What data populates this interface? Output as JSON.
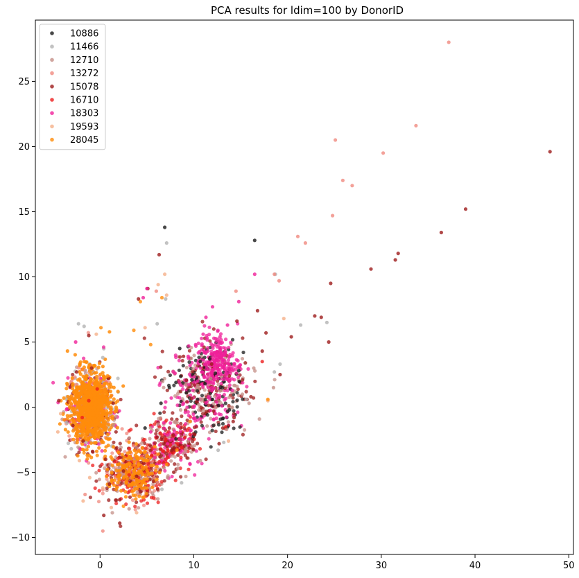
{
  "chart_data": {
    "type": "scatter",
    "title": "PCA results for ldim=100 by DonorID",
    "xlabel": "",
    "ylabel": "",
    "xlim": [
      -6.9,
      50.5
    ],
    "ylim": [
      -11.3,
      29.7
    ],
    "xticks": [
      0,
      10,
      20,
      30,
      40,
      50
    ],
    "yticks": [
      -10,
      -5,
      0,
      5,
      10,
      15,
      20,
      25
    ],
    "legend_position": "upper-left",
    "grid": false,
    "series": [
      {
        "name": "10886",
        "color": "#1a1a1a",
        "points": [
          [
            6.9,
            13.8
          ],
          [
            16.5,
            12.8
          ],
          [
            8.5,
            4.5
          ],
          [
            10.7,
            3.5
          ],
          [
            11.7,
            3.7
          ],
          [
            9.8,
            2.1
          ],
          [
            8.1,
            1.9
          ],
          [
            7.4,
            1.5
          ],
          [
            12.3,
            2.6
          ],
          [
            10.4,
            0.6
          ],
          [
            6.5,
            0.3
          ],
          [
            4.8,
            -1.6
          ],
          [
            14.8,
            2.8
          ],
          [
            11.2,
            1.8
          ],
          [
            9.2,
            1.1
          ]
        ]
      },
      {
        "name": "11466",
        "color": "#b3b3b3",
        "points": [
          [
            7.1,
            12.6
          ],
          [
            6.1,
            6.4
          ],
          [
            -2.3,
            6.4
          ],
          [
            -1.7,
            6.2
          ],
          [
            7.0,
            8.3
          ],
          [
            18.7,
            10.2
          ],
          [
            24.2,
            6.5
          ],
          [
            21.4,
            6.3
          ],
          [
            19.2,
            3.3
          ],
          [
            18.6,
            2.7
          ],
          [
            15.6,
            0.6
          ],
          [
            13.2,
            -2.7
          ],
          [
            12.6,
            -3.3
          ],
          [
            6.6,
            -6.3
          ],
          [
            8.7,
            -5.8
          ],
          [
            -1.5,
            -2.7
          ],
          [
            0.3,
            3.8
          ]
        ]
      },
      {
        "name": "12710",
        "color": "#c48f87",
        "points": [
          [
            18.5,
            1.5
          ],
          [
            15.9,
            0.3
          ],
          [
            13.5,
            -1.7
          ],
          [
            10.7,
            -4.1
          ],
          [
            8.3,
            -4.7
          ],
          [
            7.2,
            -5.4
          ],
          [
            5.6,
            -6.6
          ],
          [
            -1.0,
            -2.1
          ],
          [
            1.4,
            -1.4
          ],
          [
            16.4,
            3.0
          ],
          [
            11.8,
            2.2
          ],
          [
            3.1,
            -7.8
          ],
          [
            9.8,
            -3.0
          ]
        ]
      },
      {
        "name": "13272",
        "color": "#f08a7f",
        "points": [
          [
            37.2,
            28.0
          ],
          [
            33.7,
            21.6
          ],
          [
            25.1,
            20.5
          ],
          [
            30.2,
            19.5
          ],
          [
            25.9,
            17.4
          ],
          [
            26.9,
            17.0
          ],
          [
            24.8,
            14.7
          ],
          [
            21.1,
            13.1
          ],
          [
            21.9,
            12.6
          ],
          [
            18.6,
            10.2
          ],
          [
            14.5,
            8.9
          ],
          [
            0.3,
            -9.5
          ],
          [
            -1.6,
            -6.7
          ],
          [
            6.0,
            8.9
          ],
          [
            19.1,
            9.7
          ]
        ]
      },
      {
        "name": "15078",
        "color": "#9e1b1b",
        "points": [
          [
            48.0,
            19.6
          ],
          [
            39.0,
            15.2
          ],
          [
            36.4,
            13.4
          ],
          [
            31.8,
            11.8
          ],
          [
            31.5,
            11.3
          ],
          [
            28.9,
            10.6
          ],
          [
            24.6,
            9.5
          ],
          [
            22.9,
            7.0
          ],
          [
            23.6,
            6.9
          ],
          [
            24.4,
            5.0
          ],
          [
            20.4,
            5.4
          ],
          [
            16.8,
            7.4
          ],
          [
            14.6,
            6.6
          ],
          [
            17.7,
            5.7
          ],
          [
            6.3,
            11.7
          ],
          [
            5.1,
            9.1
          ],
          [
            4.1,
            8.3
          ],
          [
            -1.2,
            5.5
          ],
          [
            8.9,
            3.9
          ],
          [
            11.9,
            3.3
          ],
          [
            13.8,
            2.4
          ],
          [
            15.2,
            2.1
          ],
          [
            16.1,
            0.8
          ],
          [
            14.3,
            -0.8
          ],
          [
            13.1,
            -1.6
          ],
          [
            12.7,
            -2.8
          ],
          [
            10.1,
            -2.1
          ],
          [
            9.3,
            -3.9
          ],
          [
            7.9,
            -3.1
          ],
          [
            6.4,
            -3.8
          ],
          [
            5.7,
            -5.7
          ],
          [
            4.3,
            -6.5
          ],
          [
            3.2,
            -6.9
          ],
          [
            2.1,
            -7.1
          ],
          [
            1.0,
            -5.9
          ],
          [
            2.5,
            -4.9
          ],
          [
            3.9,
            -5.3
          ],
          [
            0.6,
            -4.0
          ],
          [
            -0.8,
            -3.4
          ],
          [
            -2.9,
            -1.4
          ],
          [
            -3.4,
            0.4
          ],
          [
            -4.4,
            0.5
          ],
          [
            -2.5,
            2.7
          ],
          [
            -0.9,
            3.0
          ],
          [
            0.9,
            2.2
          ],
          [
            1.4,
            0.3
          ],
          [
            1.7,
            -1.9
          ],
          [
            -1.8,
            -2.6
          ],
          [
            2.1,
            -8.9
          ],
          [
            0.4,
            -8.3
          ],
          [
            19.2,
            2.5
          ],
          [
            17.3,
            4.3
          ],
          [
            15.5,
            3.4
          ],
          [
            11.1,
            4.6
          ],
          [
            14.2,
            -1.1
          ],
          [
            8.6,
            1.2
          ],
          [
            10.3,
            0.4
          ],
          [
            12.1,
            -0.3
          ],
          [
            7.4,
            -1.6
          ],
          [
            6.1,
            -2.3
          ]
        ]
      },
      {
        "name": "16710",
        "color": "#ee1e1e",
        "points": [
          [
            17.3,
            3.5
          ],
          [
            13.4,
            -1.5
          ],
          [
            9.6,
            -2.1
          ],
          [
            8.7,
            -3.1
          ],
          [
            7.5,
            -2.9
          ],
          [
            6.3,
            -4.2
          ],
          [
            5.5,
            -3.7
          ],
          [
            4.4,
            -4.6
          ],
          [
            3.1,
            -5.2
          ],
          [
            -1.2,
            0.5
          ],
          [
            -0.3,
            1.4
          ],
          [
            -1.9,
            -0.8
          ]
        ]
      },
      {
        "name": "18303",
        "color": "#f0209a",
        "points": [
          [
            16.5,
            10.2
          ],
          [
            14.8,
            8.1
          ],
          [
            12.0,
            7.7
          ],
          [
            11.3,
            6.9
          ],
          [
            13.6,
            6.3
          ],
          [
            12.8,
            5.4
          ],
          [
            10.2,
            4.8
          ],
          [
            11.5,
            4.3
          ],
          [
            12.5,
            3.6
          ],
          [
            9.6,
            3.2
          ],
          [
            10.9,
            2.7
          ],
          [
            12.2,
            2.1
          ],
          [
            8.6,
            1.7
          ],
          [
            9.9,
            1.3
          ],
          [
            11.6,
            0.8
          ],
          [
            13.0,
            0.1
          ],
          [
            7.6,
            0.7
          ],
          [
            9.1,
            -0.4
          ],
          [
            10.7,
            -0.9
          ],
          [
            8.4,
            -1.5
          ],
          [
            6.8,
            -1.2
          ],
          [
            7.2,
            -2.8
          ],
          [
            5.4,
            -1.9
          ],
          [
            4.6,
            8.4
          ],
          [
            5.0,
            9.1
          ],
          [
            -2.6,
            5.0
          ],
          [
            14.1,
            1.3
          ],
          [
            12.9,
            4.9
          ],
          [
            11.0,
            5.6
          ],
          [
            8.0,
            2.6
          ],
          [
            9.4,
            3.9
          ],
          [
            13.5,
            2.5
          ],
          [
            10.4,
            2.0
          ],
          [
            11.9,
            1.5
          ],
          [
            10.0,
            0.0
          ],
          [
            12.3,
            -0.5
          ],
          [
            8.9,
            0.3
          ],
          [
            7.0,
            0.4
          ]
        ]
      },
      {
        "name": "19593",
        "color": "#f5b08a",
        "points": [
          [
            6.9,
            10.2
          ],
          [
            6.2,
            9.4
          ],
          [
            7.1,
            8.6
          ],
          [
            4.8,
            6.1
          ],
          [
            -0.4,
            5.6
          ],
          [
            -4.2,
            -0.5
          ],
          [
            -4.5,
            -1.9
          ],
          [
            -2.2,
            -4.1
          ],
          [
            -1.1,
            -5.4
          ],
          [
            -1.8,
            -7.2
          ],
          [
            0.3,
            -6.2
          ],
          [
            1.2,
            -7.7
          ],
          [
            3.9,
            -8.1
          ],
          [
            19.6,
            6.8
          ],
          [
            17.9,
            0.5
          ],
          [
            13.7,
            -2.6
          ]
        ]
      },
      {
        "name": "28045",
        "color": "#ff8c0a",
        "points": [
          [
            6.6,
            8.4
          ],
          [
            4.3,
            8.1
          ],
          [
            3.6,
            5.9
          ],
          [
            5.4,
            4.8
          ],
          [
            0.1,
            6.1
          ],
          [
            -0.6,
            3.2
          ],
          [
            -1.9,
            2.9
          ],
          [
            -2.9,
            1.8
          ],
          [
            -3.2,
            0.4
          ],
          [
            -3.1,
            -1.0
          ],
          [
            -2.4,
            -2.5
          ],
          [
            -1.7,
            -3.5
          ],
          [
            -0.3,
            -3.7
          ],
          [
            0.7,
            -2.4
          ],
          [
            1.1,
            -0.8
          ],
          [
            1.2,
            0.9
          ],
          [
            0.8,
            2.4
          ],
          [
            2.0,
            -5.2
          ],
          [
            2.8,
            -5.8
          ],
          [
            3.6,
            -6.4
          ],
          [
            4.5,
            -4.6
          ],
          [
            5.3,
            -5.1
          ],
          [
            4.2,
            -3.9
          ],
          [
            6.2,
            -3.6
          ],
          [
            7.1,
            -4.4
          ],
          [
            8.2,
            -3.3
          ],
          [
            3.1,
            -4.3
          ],
          [
            1.7,
            -6.3
          ],
          [
            2.5,
            -7.6
          ],
          [
            17.9,
            0.6
          ],
          [
            9.6,
            -1.1
          ],
          [
            -1.0,
            0.0
          ],
          [
            -0.5,
            1.0
          ],
          [
            -1.5,
            -1.2
          ],
          [
            -2.0,
            1.2
          ],
          [
            0.3,
            -1.5
          ],
          [
            -0.8,
            -2.0
          ]
        ]
      }
    ]
  }
}
